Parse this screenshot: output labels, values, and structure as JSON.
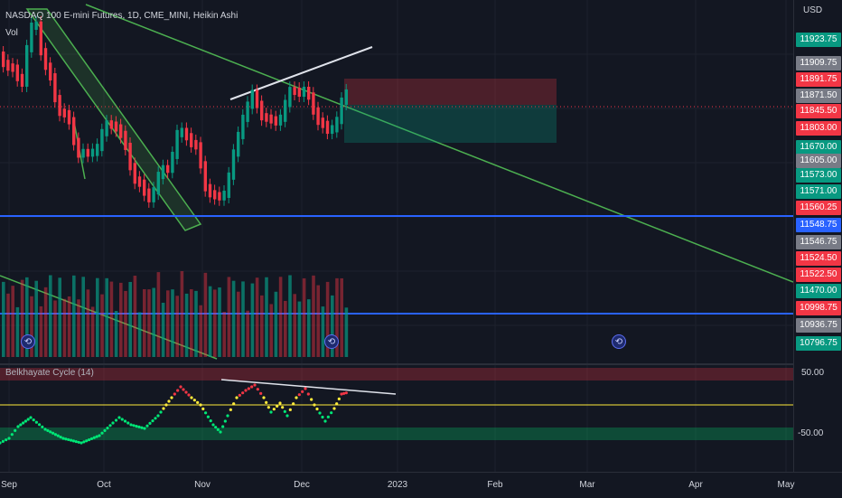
{
  "header": {
    "title": "NASDAQ 100 E-mini Futures, 1D, CME_MINI, Heikin Ashi",
    "vol_label": "Vol",
    "indicator_label": "Belkhayate Cycle (14)"
  },
  "price_axis": {
    "currency": "USD",
    "tags": [
      {
        "text": "11923.75",
        "color": "#089981"
      },
      {
        "text": "11909.75",
        "color": "#787b86"
      },
      {
        "text": "11891.75",
        "color": "#f23645"
      },
      {
        "text": "11871.50",
        "color": "#787b86"
      },
      {
        "text": "11845.50",
        "color": "#f23645"
      },
      {
        "text": "11803.00",
        "color": "#f23645"
      },
      {
        "text": "11670.00",
        "color": "#089981"
      },
      {
        "text": "11605.00",
        "color": "#787b86"
      },
      {
        "text": "11573.00",
        "color": "#089981"
      },
      {
        "text": "11571.00",
        "color": "#089981"
      },
      {
        "text": "11560.25",
        "color": "#f23645"
      },
      {
        "text": "11548.75",
        "color": "#2962ff"
      },
      {
        "text": "11546.75",
        "color": "#787b86"
      },
      {
        "text": "11524.50",
        "color": "#f23645"
      },
      {
        "text": "11522.50",
        "color": "#f23645"
      },
      {
        "text": "11470.00",
        "color": "#089981"
      },
      {
        "text": "10998.75",
        "color": "#f23645"
      },
      {
        "text": "10936.75",
        "color": "#787b86"
      },
      {
        "text": "10796.75",
        "color": "#089981"
      }
    ]
  },
  "oscillator_axis": {
    "upper": "50.00",
    "lower": "-50.00"
  },
  "time_axis": {
    "labels": [
      "Sep",
      "Oct",
      "Nov",
      "Dec",
      "2023",
      "Feb",
      "Mar",
      "Apr",
      "May"
    ]
  },
  "events": [
    "event-1",
    "event-2",
    "event-3"
  ],
  "colors": {
    "background": "#131722",
    "bull": "#089981",
    "bear": "#f23645",
    "trendline": "#4caf50",
    "horizontal": "#2962ff",
    "osc_high": "#f23645",
    "osc_mid": "#ffeb3b",
    "osc_low": "#00e676"
  },
  "chart_data": {
    "type": "candlestick",
    "style": "Heikin Ashi",
    "interval": "1D",
    "symbol": "NASDAQ 100 E-mini Futures",
    "exchange": "CME_MINI"
  }
}
